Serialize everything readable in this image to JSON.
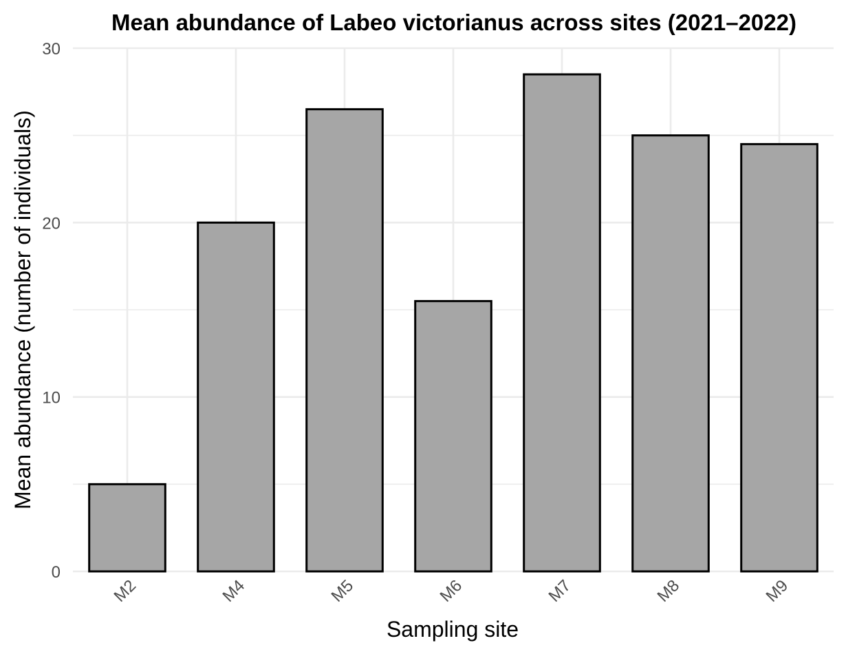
{
  "chart_data": {
    "type": "bar",
    "title": "Mean abundance of Labeo victorianus across sites (2021–2022)",
    "xlabel": "Sampling site",
    "ylabel": "Mean abundance (number of individuals)",
    "categories": [
      "M2",
      "M4",
      "M5",
      "M6",
      "M7",
      "M8",
      "M9"
    ],
    "values": [
      5,
      20,
      26.5,
      15.5,
      28.5,
      25,
      24.5
    ],
    "ylim": [
      0,
      30
    ],
    "yticks": [
      "0",
      "10",
      "20",
      "30"
    ],
    "grid": true,
    "legend": "none",
    "bar_fill": "#a6a6a6",
    "bar_stroke": "#000000",
    "grid_color": "#ebebeb"
  }
}
